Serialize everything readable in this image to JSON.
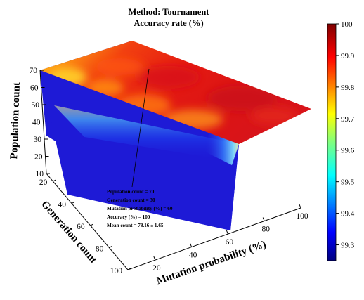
{
  "chart_data": {
    "type": "heatmap",
    "title": "Method: Tournament",
    "subtitle": "Accuracy rate (%)",
    "axes": {
      "x": {
        "label": "Mutation probability (%)",
        "ticks": [
          20,
          40,
          60,
          80,
          100
        ]
      },
      "y": {
        "label": "Generation count",
        "ticks": [
          20,
          40,
          60,
          80,
          100
        ]
      },
      "z": {
        "label": "Population count",
        "ticks": [
          10,
          20,
          30,
          40,
          50,
          60,
          70
        ]
      }
    },
    "slices": {
      "population_count": 70,
      "generation_count": 30,
      "mutation_probability": 60
    },
    "colorbar": {
      "ticks": [
        "99.3",
        "99.4",
        "99.5",
        "99.6",
        "99.7",
        "99.8",
        "99.9",
        "100"
      ],
      "range": [
        99.25,
        100
      ],
      "colormap": "jet"
    },
    "annotation": {
      "lines": [
        "Population count = 70",
        "Generation count = 30",
        "Mutation probability (%) = 60",
        "Accuracy (%) = 100",
        "Mean count = 78.16 ± 1.65"
      ]
    }
  }
}
